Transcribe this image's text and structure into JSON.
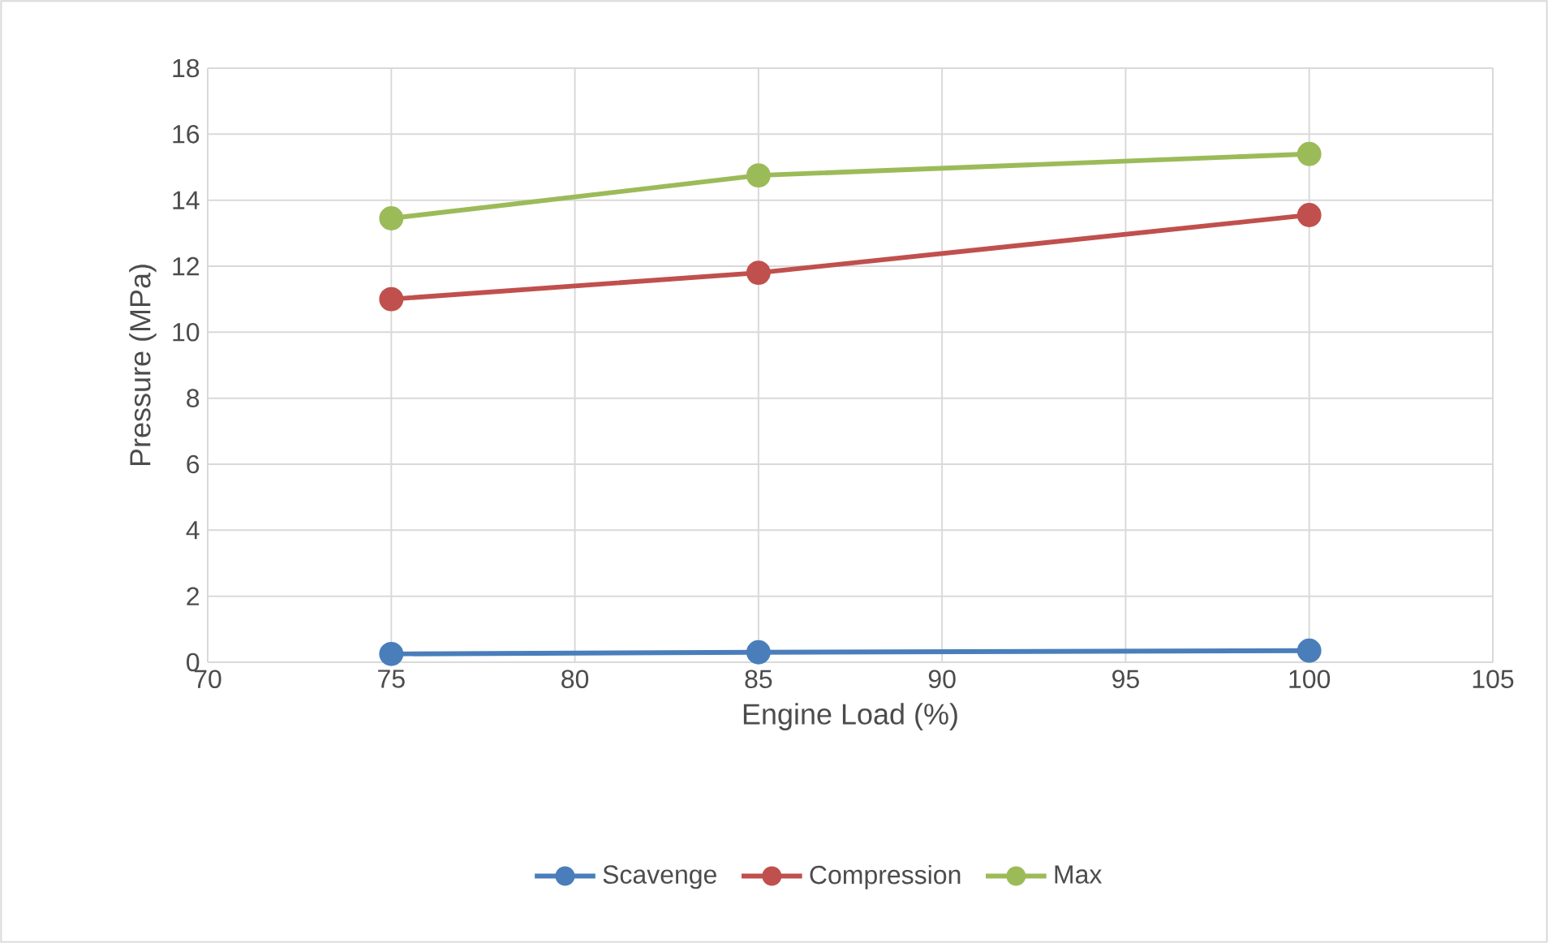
{
  "chart_data": {
    "type": "line",
    "xlabel": "Engine Load (%)",
    "ylabel": "Pressure (MPa)",
    "x": [
      75,
      85,
      100
    ],
    "series": [
      {
        "name": "Scavenge",
        "color": "#4a7ebb",
        "values": [
          0.25,
          0.3,
          0.35
        ]
      },
      {
        "name": "Compression",
        "color": "#c0504d",
        "values": [
          11.0,
          11.8,
          13.55
        ]
      },
      {
        "name": "Max",
        "color": "#9bbb59",
        "values": [
          13.45,
          14.75,
          15.4
        ]
      }
    ],
    "xlim": [
      70,
      105
    ],
    "xticks": [
      70,
      75,
      80,
      85,
      90,
      95,
      100,
      105
    ],
    "ylim": [
      0,
      18
    ],
    "yticks": [
      0,
      2,
      4,
      6,
      8,
      10,
      12,
      14,
      16,
      18
    ],
    "grid": true,
    "legend": "bottom",
    "marker": "circle",
    "line_style": "solid"
  }
}
